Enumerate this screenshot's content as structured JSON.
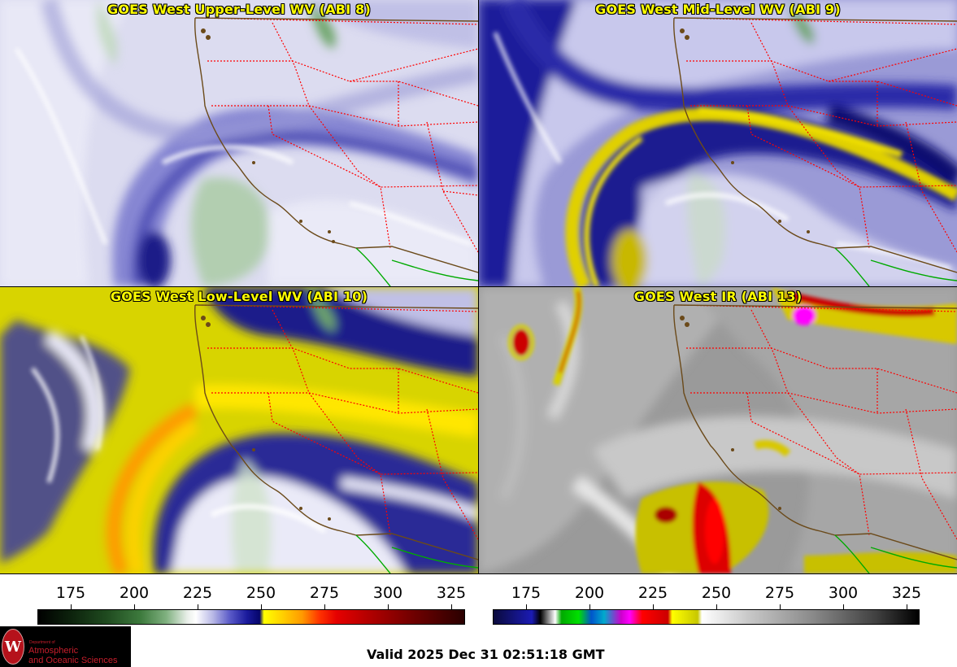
{
  "panels": {
    "upper_left": {
      "title": "GOES West Upper-Level WV (ABI 8)"
    },
    "upper_right": {
      "title": "GOES West Mid-Level WV (ABI 9)"
    },
    "lower_left": {
      "title": "GOES West Low-Level WV (ABI 10)"
    },
    "lower_right": {
      "title": "GOES West IR (ABI 13)"
    }
  },
  "colorbars": {
    "water_vapor": {
      "ticks": [
        "175",
        "200",
        "225",
        "250",
        "275",
        "300",
        "325"
      ]
    },
    "infrared": {
      "ticks": [
        "175",
        "200",
        "225",
        "250",
        "275",
        "300",
        "325"
      ]
    }
  },
  "logo": {
    "seal_letter": "W",
    "department": "Department of",
    "line1": "Atmospheric",
    "line2": "and Oceanic Sciences"
  },
  "valid_time": "Valid 2025 Dec 31 02:51:18 GMT",
  "colors": {
    "state_borders": "#ff0000",
    "coastline": "#6b4a1a",
    "mexico_border": "#00aa00",
    "title_text": "#ffff00"
  }
}
